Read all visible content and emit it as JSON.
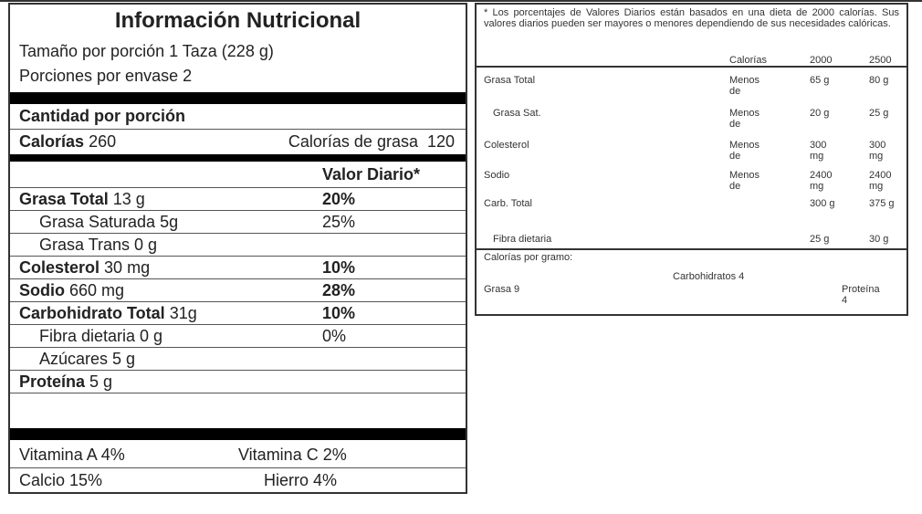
{
  "label": {
    "title": "Información Nutricional",
    "serving_size": "Tamaño por porción 1 Taza (228 g)",
    "servings": "Porciones por envase 2",
    "amount_header": "Cantidad por porción",
    "calories_label": "Calorías",
    "calories_value": "260",
    "fat_calories": "Calorías de grasa  120",
    "dv_header": "Valor Diario*",
    "nutrients": [
      {
        "name": "Grasa Total",
        "amount": "13 g",
        "dv": "20%",
        "bold": true,
        "indent": false
      },
      {
        "name": "Grasa Saturada 5g",
        "amount": "",
        "dv": "25%",
        "bold": false,
        "indent": true
      },
      {
        "name": "Grasa Trans 0 g",
        "amount": "",
        "dv": "",
        "bold": false,
        "indent": true
      },
      {
        "name": "Colesterol",
        "amount": "30 mg",
        "dv": "10%",
        "bold": true,
        "indent": false
      },
      {
        "name": "Sodio",
        "amount": "660 mg",
        "dv": "28%",
        "bold": true,
        "indent": false
      },
      {
        "name": "Carbohidrato Total",
        "amount": "31g",
        "dv": "10%",
        "bold": true,
        "indent": false
      },
      {
        "name": "Fibra dietaria 0 g",
        "amount": "",
        "dv": "0%",
        "bold": false,
        "indent": true
      },
      {
        "name": "Azúcares 5 g",
        "amount": "",
        "dv": "",
        "bold": false,
        "indent": true
      },
      {
        "name": "Proteína",
        "amount": "5 g",
        "dv": "",
        "bold": true,
        "indent": false
      }
    ],
    "vitamins": [
      {
        "left": "Vitamina A 4%",
        "right": "Vitamina C 2%"
      },
      {
        "left": "Calcio 15%",
        "right": "Hierro 4%"
      }
    ]
  },
  "footnote": {
    "note": "* Los porcentajes de Valores Diarios están basados en una dieta de 2000 calorías. Sus valores diarios pueden ser mayores o menores dependiendo de sus necesidades calóricas.",
    "headers": [
      "Calorías",
      "2000",
      "2500"
    ],
    "rows": [
      {
        "name": "Grasa Total",
        "limit": "Menos de",
        "v2000": "65 g",
        "v2500": "80 g"
      },
      {
        "name": "Grasa Sat.",
        "limit": "Menos de",
        "v2000": "20 g",
        "v2500": "25 g"
      },
      {
        "name": "Colesterol",
        "limit": "Menos de",
        "v2000": "300 mg",
        "v2500": "300 mg"
      },
      {
        "name": "Sodio",
        "limit": "Menos de",
        "v2000": "2400 mg",
        "v2500": "2400 mg"
      },
      {
        "name": "Carb. Total",
        "limit": "",
        "v2000": "300 g",
        "v2500": "375 g"
      },
      {
        "name": "Fibra dietaria",
        "limit": "",
        "v2000": "25 g",
        "v2500": "30 g"
      }
    ],
    "cal_per_gram": "Calorías por gramo:",
    "fat": "Grasa 9",
    "carbs": "Carbohidratos 4",
    "protein": "Proteína 4"
  }
}
